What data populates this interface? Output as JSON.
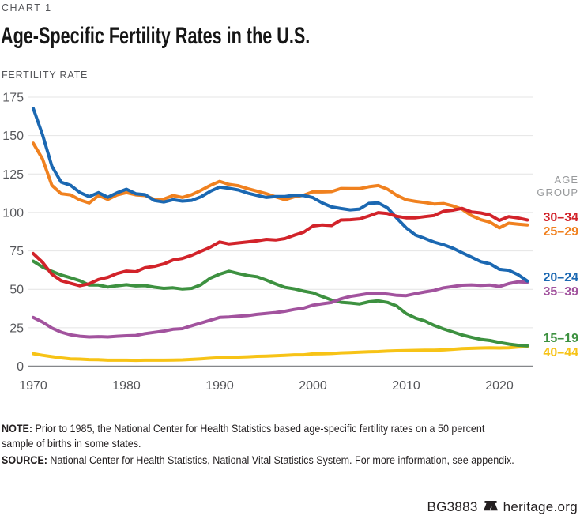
{
  "header": {
    "kicker": "CHART 1",
    "title": "Age-Specific Fertility Rates in the U.S."
  },
  "chart_data": {
    "type": "line",
    "title": "Age-Specific Fertility Rates in the U.S.",
    "ylabel": "FERTILITY RATE",
    "xlabel": "",
    "legend_title": "AGE GROUP",
    "legend_position": "right",
    "grid": "horizontal",
    "ylim": [
      0,
      175
    ],
    "xlim": [
      1970,
      2023
    ],
    "y_ticks": [
      0,
      25,
      50,
      75,
      100,
      125,
      150,
      175
    ],
    "x_ticks": [
      1970,
      1980,
      1990,
      2000,
      2010,
      2020
    ],
    "x": [
      1970,
      1971,
      1972,
      1973,
      1974,
      1975,
      1976,
      1977,
      1978,
      1979,
      1980,
      1981,
      1982,
      1983,
      1984,
      1985,
      1986,
      1987,
      1988,
      1989,
      1990,
      1991,
      1992,
      1993,
      1994,
      1995,
      1996,
      1997,
      1998,
      1999,
      2000,
      2001,
      2002,
      2003,
      2004,
      2005,
      2006,
      2007,
      2008,
      2009,
      2010,
      2011,
      2012,
      2013,
      2014,
      2015,
      2016,
      2017,
      2018,
      2019,
      2020,
      2021,
      2022,
      2023
    ],
    "series": [
      {
        "name": "ages-30-34",
        "label": "30–34",
        "color": "#d2232a",
        "z": 6,
        "values": [
          73.3,
          67.6,
          59.8,
          55.6,
          53.9,
          52.3,
          53.6,
          56.4,
          57.8,
          60.3,
          61.9,
          61.4,
          64.1,
          64.9,
          66.5,
          69.1,
          70.1,
          72.1,
          74.8,
          77.4,
          80.8,
          79.5,
          80.2,
          80.8,
          81.5,
          82.5,
          82.1,
          83.0,
          85.2,
          87.1,
          91.2,
          91.9,
          91.5,
          95.1,
          95.3,
          95.8,
          97.7,
          99.9,
          99.3,
          97.5,
          96.5,
          96.5,
          97.3,
          98.0,
          100.8,
          101.5,
          102.7,
          100.3,
          99.7,
          98.3,
          94.8,
          97.3,
          96.4,
          95.1
        ]
      },
      {
        "name": "ages-25-29",
        "label": "25–29",
        "color": "#f0811f",
        "z": 4,
        "values": [
          145.1,
          134.8,
          117.7,
          112.2,
          111.5,
          108.2,
          106.2,
          111.0,
          108.5,
          111.4,
          112.9,
          111.5,
          111.0,
          108.5,
          108.7,
          111.0,
          109.8,
          111.6,
          114.4,
          117.6,
          120.2,
          118.2,
          117.4,
          115.5,
          113.9,
          112.2,
          110.2,
          108.3,
          110.2,
          111.2,
          113.5,
          113.4,
          113.6,
          115.6,
          115.5,
          115.5,
          116.7,
          117.5,
          115.1,
          111.1,
          108.3,
          107.2,
          106.5,
          105.5,
          105.8,
          104.3,
          102.1,
          98.0,
          95.3,
          93.7,
          90.0,
          93.0,
          92.4,
          91.9
        ]
      },
      {
        "name": "ages-20-24",
        "label": "20–24",
        "color": "#1b68b2",
        "z": 5,
        "values": [
          167.8,
          150.6,
          130.2,
          119.7,
          117.7,
          113.0,
          110.3,
          112.9,
          109.9,
          112.8,
          115.1,
          112.2,
          111.6,
          107.8,
          106.8,
          108.3,
          107.4,
          107.9,
          110.2,
          113.8,
          116.5,
          115.7,
          114.6,
          112.6,
          111.1,
          109.8,
          110.4,
          110.4,
          111.2,
          111.0,
          109.7,
          106.2,
          103.6,
          102.6,
          101.7,
          102.2,
          105.9,
          106.3,
          103.0,
          96.3,
          90.0,
          85.3,
          83.1,
          80.7,
          79.0,
          76.8,
          73.8,
          71.0,
          68.0,
          66.6,
          63.0,
          62.4,
          59.5,
          55.4
        ]
      },
      {
        "name": "ages-35-39",
        "label": "35–39",
        "color": "#a2539e",
        "z": 3,
        "values": [
          31.7,
          28.7,
          24.8,
          22.1,
          20.4,
          19.5,
          19.0,
          19.2,
          19.0,
          19.5,
          19.8,
          20.0,
          21.2,
          22.0,
          22.8,
          24.0,
          24.4,
          26.3,
          28.1,
          29.9,
          31.7,
          32.0,
          32.5,
          32.9,
          33.7,
          34.3,
          34.9,
          35.7,
          36.9,
          37.8,
          39.7,
          40.6,
          41.4,
          43.8,
          45.4,
          46.3,
          47.3,
          47.5,
          46.9,
          46.1,
          45.9,
          47.2,
          48.3,
          49.3,
          51.0,
          51.8,
          52.7,
          52.9,
          52.6,
          52.8,
          51.8,
          53.7,
          54.9,
          54.7
        ]
      },
      {
        "name": "ages-15-19",
        "label": "15–19",
        "color": "#3d9140",
        "z": 2,
        "values": [
          68.3,
          64.5,
          61.7,
          59.3,
          57.5,
          55.6,
          52.8,
          52.8,
          51.5,
          52.3,
          53.0,
          52.2,
          52.4,
          51.4,
          50.6,
          51.0,
          50.2,
          50.6,
          53.0,
          57.3,
          59.9,
          61.8,
          60.3,
          59.0,
          58.2,
          56.0,
          53.5,
          51.3,
          50.3,
          48.8,
          47.7,
          45.3,
          43.0,
          41.6,
          41.1,
          40.5,
          41.9,
          42.5,
          41.5,
          39.1,
          34.2,
          31.3,
          29.4,
          26.5,
          24.2,
          22.3,
          20.3,
          18.8,
          17.4,
          16.7,
          15.4,
          14.4,
          13.6,
          13.2
        ]
      },
      {
        "name": "ages-40-44",
        "label": "40–44",
        "color": "#f7c316",
        "z": 1,
        "values": [
          8.1,
          7.1,
          6.2,
          5.4,
          4.8,
          4.6,
          4.3,
          4.2,
          3.9,
          3.9,
          3.9,
          3.8,
          3.9,
          3.9,
          3.9,
          4.0,
          4.1,
          4.4,
          4.8,
          5.2,
          5.5,
          5.5,
          5.9,
          6.1,
          6.4,
          6.6,
          6.8,
          7.1,
          7.4,
          7.4,
          8.0,
          8.1,
          8.3,
          8.7,
          8.9,
          9.1,
          9.4,
          9.5,
          9.8,
          10.0,
          10.2,
          10.3,
          10.4,
          10.4,
          10.6,
          11.0,
          11.4,
          11.6,
          11.8,
          12.0,
          11.8,
          12.0,
          12.5,
          12.7
        ]
      }
    ],
    "colors": {
      "gridline": "#e4e4e4",
      "zero_axis": "#85878a",
      "tick_text": "#55565a"
    }
  },
  "notes": {
    "note_label": "NOTE:",
    "note_text": " Prior to 1985, the National Center for Health Statistics based age-specific fertility rates on a 50 percent\nsample of births in some states.",
    "source_label": "SOURCE:",
    "source_text": " National Center for Health Statistics, National Vital Statistics System. For more information, see appendix."
  },
  "footer": {
    "code": "BG3883",
    "site": "heritage.org",
    "bell_icon": "liberty-bell-icon"
  }
}
